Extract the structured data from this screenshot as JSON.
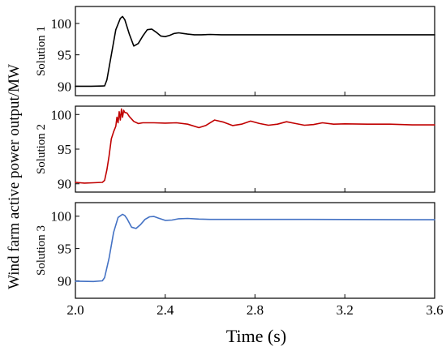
{
  "chart_data": {
    "type": "line",
    "xlabel": "Time (s)",
    "ylabel": "Wind farm active power output/MW",
    "xlim": [
      2.0,
      3.6
    ],
    "x_ticks": [
      "2.0",
      "2.4",
      "2.8",
      "3.2",
      "3.6"
    ],
    "x_tick_values": [
      2.0,
      2.4,
      2.8,
      3.2,
      3.6
    ],
    "grid": false,
    "panels": [
      {
        "name": "Solution 1",
        "color": "#000000",
        "ylim": [
          88.5,
          102.7
        ],
        "y_ticks": [
          "90",
          "95",
          "100"
        ],
        "y_tick_values": [
          90,
          95,
          100
        ],
        "x": [
          2.0,
          2.07,
          2.13,
          2.14,
          2.16,
          2.18,
          2.2,
          2.21,
          2.22,
          2.24,
          2.26,
          2.28,
          2.3,
          2.32,
          2.34,
          2.36,
          2.38,
          2.4,
          2.42,
          2.44,
          2.46,
          2.48,
          2.5,
          2.53,
          2.56,
          2.6,
          2.65,
          2.7,
          3.0,
          3.6
        ],
        "values": [
          90.0,
          90.0,
          90.05,
          91.0,
          95.0,
          99.0,
          100.8,
          101.1,
          100.6,
          98.3,
          96.4,
          96.8,
          98.0,
          99.0,
          99.1,
          98.6,
          98.0,
          97.9,
          98.1,
          98.4,
          98.5,
          98.4,
          98.3,
          98.2,
          98.2,
          98.25,
          98.2,
          98.2,
          98.2,
          98.2
        ]
      },
      {
        "name": "Solution 2",
        "color": "#c00000",
        "ylim": [
          88.8,
          101.2
        ],
        "y_ticks": [
          "90",
          "95",
          "100"
        ],
        "y_tick_values": [
          90,
          95,
          100
        ],
        "x": [
          2.0,
          2.04,
          2.08,
          2.12,
          2.13,
          2.14,
          2.15,
          2.16,
          2.17,
          2.18,
          2.185,
          2.19,
          2.195,
          2.2,
          2.205,
          2.21,
          2.215,
          2.22,
          2.23,
          2.24,
          2.26,
          2.28,
          2.3,
          2.35,
          2.4,
          2.45,
          2.5,
          2.55,
          2.58,
          2.62,
          2.66,
          2.7,
          2.74,
          2.78,
          2.82,
          2.86,
          2.9,
          2.94,
          2.98,
          3.02,
          3.06,
          3.1,
          3.15,
          3.2,
          3.3,
          3.4,
          3.5,
          3.6
        ],
        "values": [
          90.2,
          90.1,
          90.15,
          90.2,
          90.5,
          92.0,
          94.0,
          96.5,
          97.5,
          98.3,
          99.6,
          98.8,
          100.4,
          99.2,
          100.8,
          99.6,
          100.6,
          100.3,
          100.2,
          99.7,
          99.0,
          98.7,
          98.8,
          98.8,
          98.75,
          98.8,
          98.6,
          98.1,
          98.4,
          99.2,
          98.9,
          98.4,
          98.6,
          99.05,
          98.7,
          98.45,
          98.6,
          98.95,
          98.7,
          98.45,
          98.55,
          98.8,
          98.6,
          98.65,
          98.6,
          98.6,
          98.5,
          98.5
        ]
      },
      {
        "name": "Solution 3",
        "color": "#4472c4",
        "ylim": [
          87.3,
          102.1
        ],
        "y_ticks": [
          "90",
          "95",
          "100"
        ],
        "y_tick_values": [
          90,
          95,
          100
        ],
        "x": [
          2.0,
          2.08,
          2.12,
          2.13,
          2.15,
          2.17,
          2.19,
          2.21,
          2.22,
          2.23,
          2.25,
          2.27,
          2.29,
          2.31,
          2.33,
          2.35,
          2.37,
          2.4,
          2.43,
          2.46,
          2.5,
          2.55,
          2.6,
          3.0,
          3.6
        ],
        "values": [
          89.95,
          89.9,
          90.0,
          90.5,
          93.5,
          97.5,
          99.8,
          100.3,
          100.1,
          99.6,
          98.3,
          98.1,
          98.7,
          99.5,
          99.9,
          99.95,
          99.7,
          99.35,
          99.4,
          99.6,
          99.65,
          99.55,
          99.5,
          99.5,
          99.45
        ]
      }
    ]
  }
}
